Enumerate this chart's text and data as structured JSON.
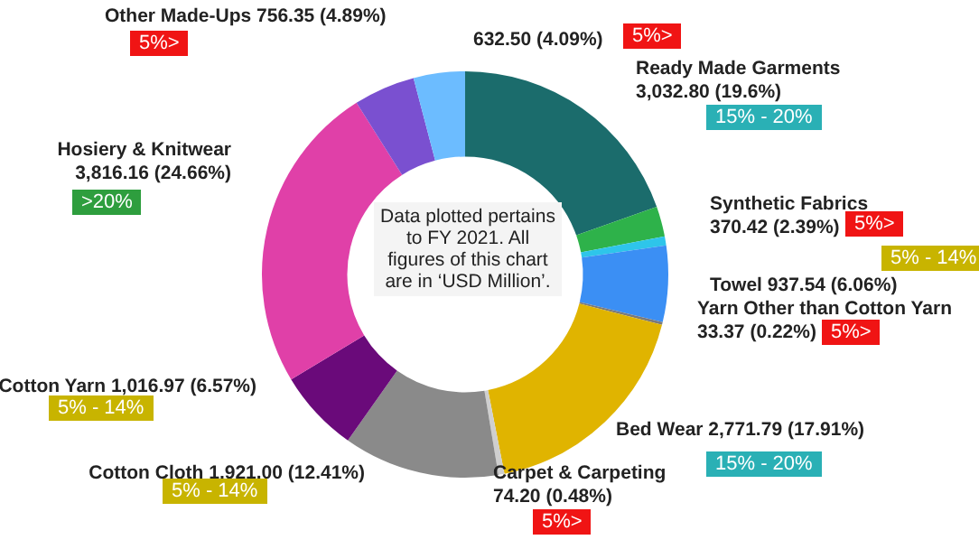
{
  "chart_data": {
    "type": "donut",
    "categories": [
      "Ready Made Garments",
      "Synthetic Fabrics",
      null,
      "Towel",
      "Yarn Other than Cotton Yarn",
      "Bed Wear",
      "Carpet & Carpeting",
      "Cotton Cloth",
      "Cotton Yarn",
      "Hosiery & Knitwear",
      "Other Made-Ups",
      null
    ],
    "values": [
      3032.8,
      370.42,
      111,
      937.54,
      33.37,
      2771.79,
      74.2,
      1921.0,
      1016.97,
      3816.16,
      756.35,
      632.5
    ],
    "value_labels": [
      "3,032.80 (19.6%)",
      "370.42 (2.39%)",
      null,
      "937.54 (6.06%)",
      "33.37 (0.22%)",
      "2,771.79 (17.91%)",
      "74.20 (0.48%)",
      "1,921.00 (12.41%)",
      "1,016.97 (6.57%)",
      "3,816.16 (24.66%)",
      "756.35 (4.89%)",
      "632.50 (4.09%)"
    ],
    "colors": [
      "#1b6c6c",
      "#2eb24a",
      "#2ec5ea",
      "#3b8ff4",
      "#7a7a7a",
      "#e0b400",
      "#cfcfcf",
      "#8a8a8a",
      "#6a0a7a",
      "#e040a8",
      "#7a50d0",
      "#6cbcff"
    ],
    "annotations": [
      "Data plotted pertains to FY 2021. All figures of this chart are in ‘USD Million’.",
      "5%>",
      "5%>",
      "15% - 20%",
      ">20%",
      "5%>",
      "5% - 14%",
      "5%>",
      "5% - 14%",
      "15% - 20%",
      "5% - 14%",
      "5%>"
    ],
    "legend": false
  }
}
